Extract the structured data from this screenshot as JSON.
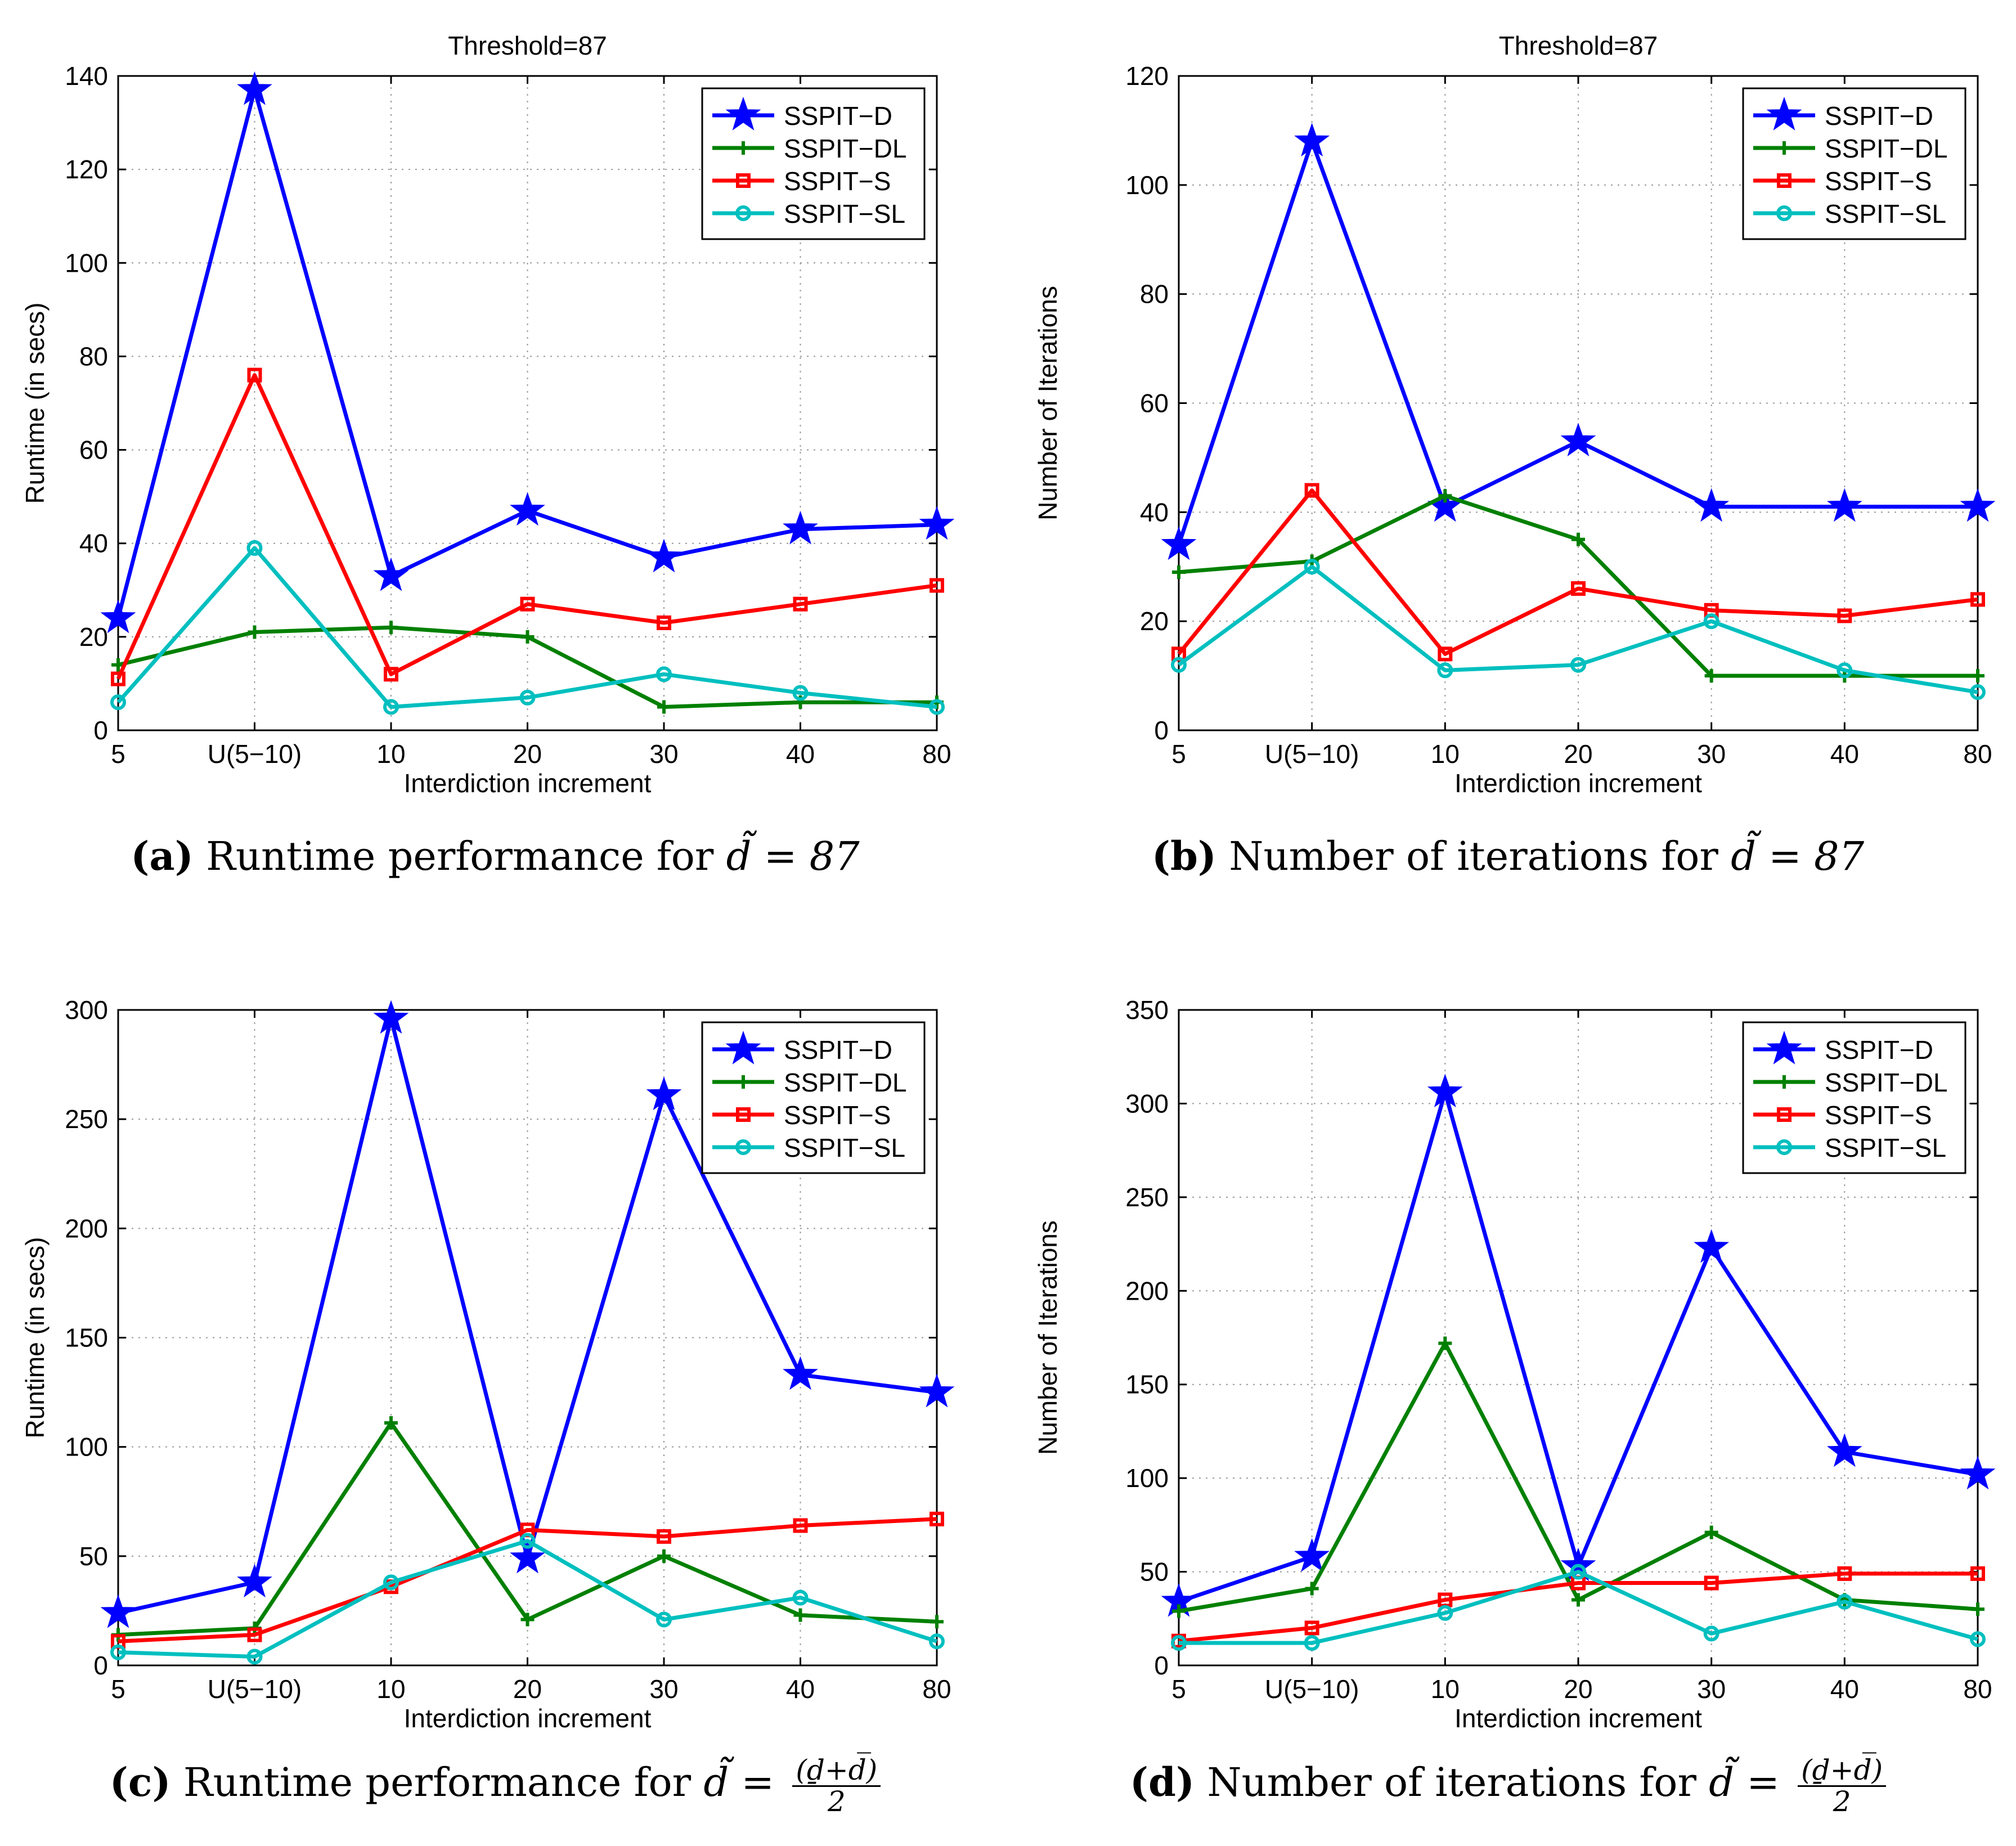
{
  "chart_data": [
    {
      "type": "line",
      "title": "Threshold=87",
      "xlabel": "Interdiction increment",
      "ylabel": "Runtime (in secs)",
      "categories": [
        "5",
        "U(5−10)",
        "10",
        "20",
        "30",
        "40",
        "80"
      ],
      "ylim": [
        0,
        140
      ],
      "yticks": [
        0,
        20,
        40,
        60,
        80,
        100,
        120,
        140
      ],
      "grid": true,
      "legend_position": "top-right",
      "series": [
        {
          "name": "SSPIT−D",
          "values": [
            24,
            137,
            33,
            47,
            37,
            43,
            44
          ]
        },
        {
          "name": "SSPIT−DL",
          "values": [
            14,
            21,
            22,
            20,
            5,
            6,
            6
          ]
        },
        {
          "name": "SSPIT−S",
          "values": [
            11,
            76,
            12,
            27,
            23,
            27,
            31
          ]
        },
        {
          "name": "SSPIT−SL",
          "values": [
            6,
            39,
            5,
            7,
            12,
            8,
            5
          ]
        }
      ]
    },
    {
      "type": "line",
      "title": "Threshold=87",
      "xlabel": "Interdiction increment",
      "ylabel": "Number of Iterations",
      "categories": [
        "5",
        "U(5−10)",
        "10",
        "20",
        "30",
        "40",
        "80"
      ],
      "ylim": [
        0,
        120
      ],
      "yticks": [
        0,
        20,
        40,
        60,
        80,
        100,
        120
      ],
      "grid": true,
      "legend_position": "top-right",
      "series": [
        {
          "name": "SSPIT−D",
          "values": [
            34,
            108,
            41,
            53,
            41,
            41,
            41
          ]
        },
        {
          "name": "SSPIT−DL",
          "values": [
            29,
            31,
            43,
            35,
            10,
            10,
            10
          ]
        },
        {
          "name": "SSPIT−S",
          "values": [
            14,
            44,
            14,
            26,
            22,
            21,
            24
          ]
        },
        {
          "name": "SSPIT−SL",
          "values": [
            12,
            30,
            11,
            12,
            20,
            11,
            7
          ]
        }
      ]
    },
    {
      "type": "line",
      "title": "",
      "xlabel": "Interdiction increment",
      "ylabel": "Runtime (in secs)",
      "categories": [
        "5",
        "U(5−10)",
        "10",
        "20",
        "30",
        "40",
        "80"
      ],
      "ylim": [
        0,
        300
      ],
      "yticks": [
        0,
        50,
        100,
        150,
        200,
        250,
        300
      ],
      "grid": true,
      "legend_position": "top-right",
      "series": [
        {
          "name": "SSPIT−D",
          "values": [
            24,
            38,
            296,
            49,
            261,
            133,
            125
          ]
        },
        {
          "name": "SSPIT−DL",
          "values": [
            14,
            17,
            111,
            21,
            50,
            23,
            20
          ]
        },
        {
          "name": "SSPIT−S",
          "values": [
            11,
            14,
            36,
            62,
            59,
            64,
            67
          ]
        },
        {
          "name": "SSPIT−SL",
          "values": [
            6,
            4,
            38,
            57,
            21,
            31,
            11
          ]
        }
      ]
    },
    {
      "type": "line",
      "title": "",
      "xlabel": "Interdiction increment",
      "ylabel": "Number of Iterations",
      "categories": [
        "5",
        "U(5−10)",
        "10",
        "20",
        "30",
        "40",
        "80"
      ],
      "ylim": [
        0,
        350
      ],
      "yticks": [
        0,
        50,
        100,
        150,
        200,
        250,
        300,
        350
      ],
      "grid": true,
      "legend_position": "top-right",
      "series": [
        {
          "name": "SSPIT−D",
          "values": [
            34,
            58,
            306,
            53,
            223,
            114,
            102
          ]
        },
        {
          "name": "SSPIT−DL",
          "values": [
            29,
            41,
            172,
            35,
            71,
            35,
            30
          ]
        },
        {
          "name": "SSPIT−S",
          "values": [
            13,
            20,
            35,
            44,
            44,
            49,
            49
          ]
        },
        {
          "name": "SSPIT−SL",
          "values": [
            12,
            12,
            28,
            50,
            17,
            34,
            14
          ]
        }
      ]
    }
  ],
  "style": {
    "series_colors": [
      "#0000ff",
      "#008000",
      "#ff0000",
      "#00bfbf"
    ],
    "series_markers": [
      "star",
      "plus",
      "square",
      "circle"
    ]
  },
  "captions": [
    {
      "label": "(a)",
      "text": "Runtime performance for",
      "eq": "d̃ = 87"
    },
    {
      "label": "(b)",
      "text": "Number of iterations for",
      "eq": "d̃ = 87"
    },
    {
      "label": "(c)",
      "text": "Runtime performance for",
      "eq": "d̃ =",
      "frac_num": "(ḏ+d̅)",
      "frac_den": "2"
    },
    {
      "label": "(d)",
      "text": "Number of iterations for",
      "eq": "d̃ =",
      "frac_num": "(ḏ+d̅)",
      "frac_den": "2"
    }
  ]
}
